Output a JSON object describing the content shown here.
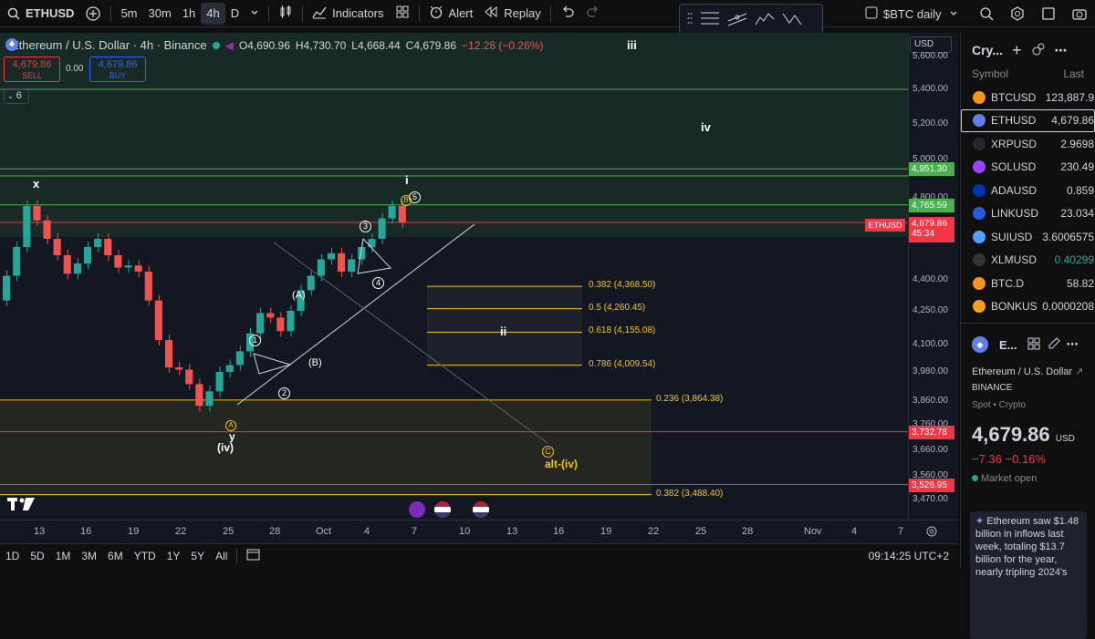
{
  "toolbar": {
    "symbol": "ETHUSD",
    "intervals": [
      "5m",
      "30m",
      "1h",
      "4h",
      "D"
    ],
    "active_interval": "4h",
    "indicators": "Indicators",
    "alert": "Alert",
    "replay": "Replay",
    "layout_name": "$BTC daily"
  },
  "legend": {
    "title": "Ethereum / U.S. Dollar · 4h · Binance",
    "open": "O4,690.96",
    "high": "H4,730.70",
    "low": "L4,668.44",
    "close": "C4,679.86",
    "change": "−12.28 (−0.26%)",
    "sell_price": "4,679.86",
    "sell_label": "SELL",
    "spread": "0.00",
    "buy_price": "4,679.86",
    "buy_label": "BUY",
    "indicator_count": "6"
  },
  "price_scale": {
    "currency": "USD",
    "labels": [
      {
        "text": "5,600.00",
        "price": 5600
      },
      {
        "text": "5,400.00",
        "price": 5400
      },
      {
        "text": "5,200.00",
        "price": 5200
      },
      {
        "text": "5,000.00",
        "price": 5000
      },
      {
        "text": "4,800.00",
        "price": 4800
      },
      {
        "text": "4,400.00",
        "price": 4400
      },
      {
        "text": "4,250.00",
        "price": 4250
      },
      {
        "text": "4,100.00",
        "price": 4100
      },
      {
        "text": "3,980.00",
        "price": 3980
      },
      {
        "text": "3,860.00",
        "price": 3860
      },
      {
        "text": "3,760.00",
        "price": 3760
      },
      {
        "text": "3,660.00",
        "price": 3660
      },
      {
        "text": "3,560.00",
        "price": 3560
      },
      {
        "text": "3,470.00",
        "price": 3470
      }
    ],
    "badges": [
      {
        "text": "4,951.30",
        "price": 4951.3,
        "color": "#4caf50"
      },
      {
        "text": "4,765.59",
        "price": 4765.59,
        "color": "#4caf50"
      },
      {
        "text": "3,732.78",
        "price": 3732.78,
        "color": "#f23645"
      },
      {
        "text": "3,526.95",
        "price": 3526.95,
        "color": "#f23645"
      }
    ],
    "current": {
      "symbol": "ETHUSD",
      "price": "4,679.86",
      "countdown": "45:34",
      "color": "#f23645"
    }
  },
  "fib_levels": [
    {
      "text": "0.382 (4,368.50)",
      "price": 4368.5
    },
    {
      "text": "0.5 (4,260.45)",
      "price": 4260.45
    },
    {
      "text": "0.618 (4,155.08)",
      "price": 4155.08
    },
    {
      "text": "0.786 (4,009.54)",
      "price": 4009.54
    }
  ],
  "fib_wide": [
    {
      "text": "0.236 (3,864.38)",
      "price": 3864.38
    },
    {
      "text": "0.382 (3,488.40)",
      "price": 3488.4
    }
  ],
  "wave_labels": {
    "iii": "iii",
    "iv": "iv",
    "i": "i",
    "ii": "ii",
    "x": "x",
    "y": "y",
    "iv_paren": "(iv)",
    "A_paren": "(A)",
    "B_paren": "(B)",
    "alt": "alt-(iv)"
  },
  "circled_labels": {
    "one": "1",
    "two": "2",
    "three": "3",
    "four": "4",
    "five": "5",
    "A": "A",
    "B": "B",
    "C": "C"
  },
  "time_scale": [
    {
      "text": "13",
      "x": 43
    },
    {
      "text": "16",
      "x": 94
    },
    {
      "text": "19",
      "x": 146
    },
    {
      "text": "22",
      "x": 198
    },
    {
      "text": "25",
      "x": 250
    },
    {
      "text": "28",
      "x": 301
    },
    {
      "text": "Oct",
      "x": 352
    },
    {
      "text": "4",
      "x": 405
    },
    {
      "text": "7",
      "x": 457
    },
    {
      "text": "10",
      "x": 509
    },
    {
      "text": "13",
      "x": 561
    },
    {
      "text": "16",
      "x": 612
    },
    {
      "text": "19",
      "x": 664
    },
    {
      "text": "22",
      "x": 716
    },
    {
      "text": "25",
      "x": 768
    },
    {
      "text": "28",
      "x": 819
    },
    {
      "text": "Nov",
      "x": 887
    },
    {
      "text": "4",
      "x": 939
    },
    {
      "text": "7",
      "x": 990
    }
  ],
  "bottom": {
    "ranges": [
      "1D",
      "5D",
      "1M",
      "3M",
      "6M",
      "YTD",
      "1Y",
      "5Y",
      "All"
    ],
    "clock": "09:14:25 UTC+2"
  },
  "watchlist": {
    "title": "Cry...",
    "col_symbol": "Symbol",
    "col_last": "Last",
    "rows": [
      {
        "symbol": "BTCUSD",
        "last": "123,887.9",
        "icon": "btc-icon",
        "color": "#f7931a"
      },
      {
        "symbol": "ETHUSD",
        "last": "4,679.86",
        "icon": "eth-icon",
        "color": "#627eea",
        "selected": true
      },
      {
        "symbol": "XRPUSD",
        "last": "2.9698",
        "icon": "xrp-icon",
        "color": "#23292f"
      },
      {
        "symbol": "SOLUSD",
        "last": "230.49",
        "icon": "sol-icon",
        "color": "#9945ff"
      },
      {
        "symbol": "ADAUSD",
        "last": "0.859",
        "icon": "ada-icon",
        "color": "#0033ad"
      },
      {
        "symbol": "LINKUSD",
        "last": "23.034",
        "icon": "link-icon",
        "color": "#2a5ada"
      },
      {
        "symbol": "SUIUSD",
        "last": "3.6006575",
        "icon": "sui-icon",
        "color": "#4da2ff"
      },
      {
        "symbol": "XLMUSD",
        "last": "0.40299",
        "icon": "xlm-icon",
        "color": "#333333",
        "last_color": "#26a69a"
      },
      {
        "symbol": "BTC.D",
        "last": "58.82",
        "icon": "btcd-icon",
        "color": "#f7931a"
      },
      {
        "symbol": "BONKUS",
        "last": "0.0000208",
        "icon": "bonk-icon",
        "color": "#f8a01b"
      }
    ]
  },
  "details": {
    "short": "E...",
    "name": "Ethereum / U.S. Dollar",
    "exchange": "BINANCE",
    "type": "Spot • Crypto",
    "price": "4,679.86",
    "currency": "USD",
    "change": "−7.36  −0.16%",
    "status": "Market open",
    "news": "Ethereum saw $1.48 billion in inflows last week, totaling $13.7 billion for the year, nearly tripling 2024's"
  },
  "chart_data": {
    "type": "candlestick",
    "ylim": [
      3420,
      5700
    ],
    "candles_close_path": [
      4300,
      4420,
      4560,
      4760,
      4690,
      4600,
      4520,
      4430,
      4480,
      4560,
      4600,
      4520,
      4460,
      4470,
      4440,
      4300,
      4120,
      4000,
      3990,
      3930,
      3840,
      3900,
      3980,
      4010,
      4070,
      4150,
      4240,
      4220,
      4160,
      4250,
      4350,
      4420,
      4500,
      4530,
      4440,
      4500,
      4560,
      4600,
      4700,
      4760,
      4680
    ]
  }
}
